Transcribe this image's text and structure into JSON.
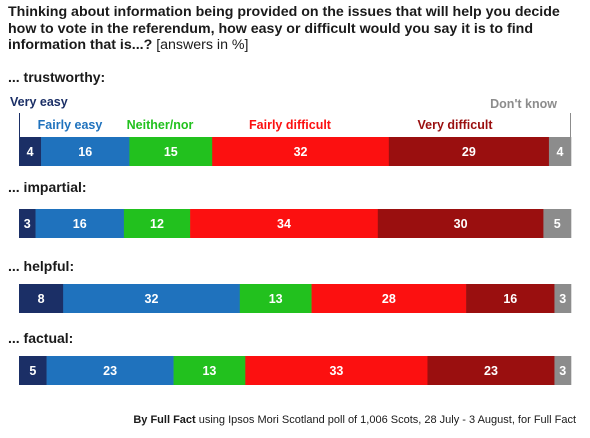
{
  "title": {
    "main": "Thinking about information being provided on the issues that will help you decide how to vote in the referendum, how easy or difficult would you say it is to find information that is...?",
    "note": "[answers in %]"
  },
  "footer": {
    "bold": "By Full Fact",
    "rest": "using Ipsos Mori Scotland poll of 1,006 Scots, 28 July - 3 August, for Full Fact"
  },
  "colors": {
    "very_easy": "#1b2f66",
    "fairly_easy": "#1f72bd",
    "neither_nor": "#22c11e",
    "fairly_difficult": "#fc1010",
    "very_difficult": "#9a0f0f",
    "dont_know": "#8c8c8c"
  },
  "chart_data": {
    "type": "bar",
    "orientation": "horizontal",
    "stacked": true,
    "unit": "%",
    "categories": [
      "... trustworthy:",
      "... impartial:",
      "... helpful:",
      "... factual:"
    ],
    "series": [
      {
        "name": "Very easy",
        "color": "#1b2f66",
        "values": [
          4,
          3,
          8,
          5
        ]
      },
      {
        "name": "Fairly easy",
        "color": "#1f72bd",
        "values": [
          16,
          16,
          32,
          23
        ]
      },
      {
        "name": "Neither/nor",
        "color": "#22c11e",
        "values": [
          15,
          12,
          13,
          13
        ]
      },
      {
        "name": "Fairly difficult",
        "color": "#fc1010",
        "values": [
          32,
          34,
          28,
          33
        ]
      },
      {
        "name": "Very difficult",
        "color": "#9a0f0f",
        "values": [
          29,
          30,
          16,
          23
        ]
      },
      {
        "name": "Don't know",
        "color": "#8c8c8c",
        "values": [
          4,
          5,
          3,
          3
        ]
      }
    ]
  }
}
